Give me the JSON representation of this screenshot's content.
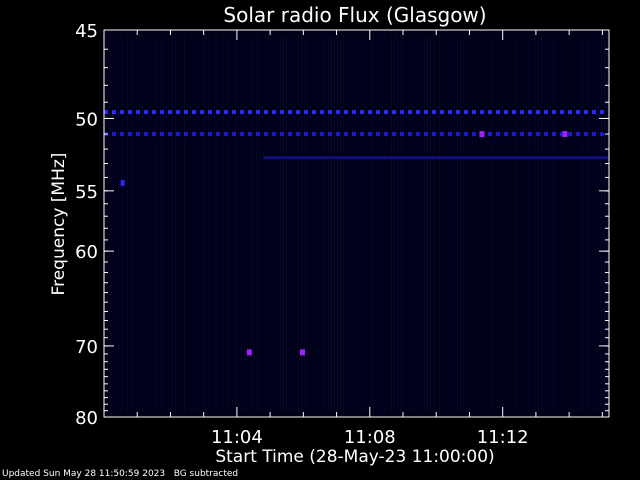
{
  "chart_data": {
    "type": "heatmap",
    "title": "Solar radio Flux (Glasgow)",
    "xlabel": "Start Time (28-May-23 11:00:00)",
    "ylabel": "Frequency [MHz]",
    "x_unit": "minutes after 11:00:00",
    "xlim": [
      0,
      15.2
    ],
    "ylim_reciprocal_axis": [
      45,
      80
    ],
    "y_scale": "reciprocal",
    "x_ticks": [
      {
        "value": 4,
        "label": "11:04"
      },
      {
        "value": 8,
        "label": "11:08"
      },
      {
        "value": 12,
        "label": "11:12"
      }
    ],
    "y_ticks": [
      {
        "value": 45,
        "label": "45"
      },
      {
        "value": 50,
        "label": "50"
      },
      {
        "value": 55,
        "label": "55"
      },
      {
        "value": 60,
        "label": "60"
      },
      {
        "value": 70,
        "label": "70"
      },
      {
        "value": 80,
        "label": "80"
      }
    ],
    "background_color": "#000018",
    "features": [
      {
        "name": "",
        "freq": 49.6,
        "t_start": 0.0,
        "t_end": 15.0,
        "pattern": "dashed",
        "color": "#2a2aff"
      },
      {
        "name": "",
        "freq": 51.0,
        "t_start": 0.0,
        "t_end": 15.0,
        "pattern": "dashed",
        "color": "#1a1ad0"
      },
      {
        "name": "",
        "freq": 52.6,
        "t_start": 4.8,
        "t_end": 15.2,
        "pattern": "solid",
        "color": "#101080"
      },
      {
        "name": "",
        "freq": 54.4,
        "t_start": 0.5,
        "t_end": 0.6,
        "pattern": "spot",
        "color": "#2a2aff"
      },
      {
        "name": "",
        "freq": 70.8,
        "t_start": 4.3,
        "t_end": 4.45,
        "pattern": "spot",
        "color": "#a020ff"
      },
      {
        "name": "",
        "freq": 70.8,
        "t_start": 5.9,
        "t_end": 6.05,
        "pattern": "spot",
        "color": "#a020ff"
      },
      {
        "name": "",
        "freq": 51.0,
        "t_start": 11.3,
        "t_end": 11.45,
        "pattern": "spot",
        "color": "#a020ff"
      },
      {
        "name": "",
        "freq": 51.0,
        "t_start": 13.8,
        "t_end": 13.95,
        "pattern": "spot",
        "color": "#a020ff"
      }
    ]
  },
  "footer": {
    "text": "Updated Sun May 28 11:50:59 2023   BG subtracted"
  }
}
